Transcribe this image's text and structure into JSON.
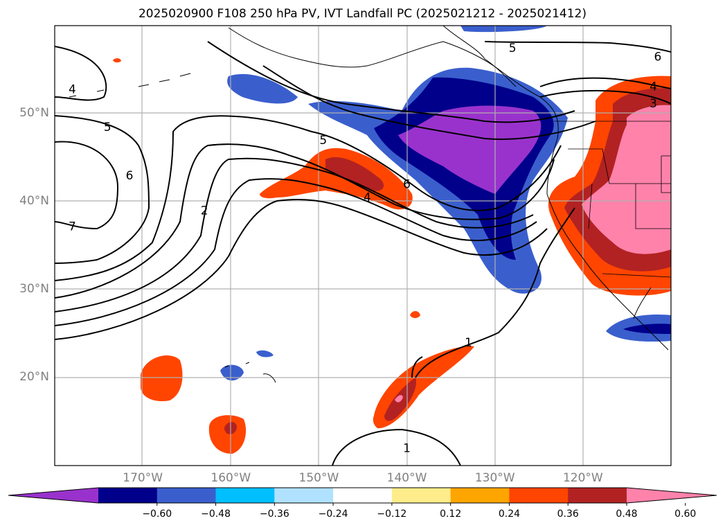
{
  "title": "2025020900 F108 250 hPa PV, IVT Landfall PC (2025021212 - 2025021412)",
  "map": {
    "lon_range": [
      -180,
      -110
    ],
    "lat_range": [
      10,
      60
    ],
    "lat_ticks": [
      {
        "value": 50,
        "label": "50°N"
      },
      {
        "value": 40,
        "label": "40°N"
      },
      {
        "value": 30,
        "label": "30°N"
      },
      {
        "value": 20,
        "label": "20°N"
      }
    ],
    "lon_ticks": [
      {
        "value": -170,
        "label": "170°W"
      },
      {
        "value": -160,
        "label": "160°W"
      },
      {
        "value": -150,
        "label": "150°W"
      },
      {
        "value": -140,
        "label": "140°W"
      },
      {
        "value": -130,
        "label": "130°W"
      },
      {
        "value": -120,
        "label": "120°W"
      }
    ],
    "gridlines": true,
    "contour_labels": [
      {
        "text": "4",
        "lon": -178,
        "lat": 52.8
      },
      {
        "text": "5",
        "lon": -174,
        "lat": 48.5
      },
      {
        "text": "6",
        "lon": -171.5,
        "lat": 43
      },
      {
        "text": "7",
        "lon": -178,
        "lat": 37.2
      },
      {
        "text": "2",
        "lon": -163,
        "lat": 39
      },
      {
        "text": "5",
        "lon": -149.5,
        "lat": 47
      },
      {
        "text": "4",
        "lon": -144.5,
        "lat": 40.5
      },
      {
        "text": "6",
        "lon": -140,
        "lat": 42
      },
      {
        "text": "5",
        "lon": -128,
        "lat": 57.5
      },
      {
        "text": "6",
        "lon": -111.5,
        "lat": 56.5
      },
      {
        "text": "4",
        "lon": -112,
        "lat": 53.1
      },
      {
        "text": "3",
        "lon": -112,
        "lat": 51.2
      },
      {
        "text": "1",
        "lon": -133,
        "lat": 24
      },
      {
        "text": "1",
        "lon": -140,
        "lat": 12
      }
    ]
  },
  "colorbar": {
    "colors": [
      "#9932cc",
      "#00008b",
      "#3a5fcd",
      "#00bfff",
      "#b0e2ff",
      "#ffffff",
      "#ffec8b",
      "#ffa500",
      "#ff4500",
      "#b22222",
      "#ff82ab"
    ],
    "tick_labels": [
      "−0.60",
      "−0.48",
      "−0.36",
      "−0.24",
      "−0.12",
      "0.12",
      "0.24",
      "0.36",
      "0.48",
      "0.60"
    ]
  }
}
